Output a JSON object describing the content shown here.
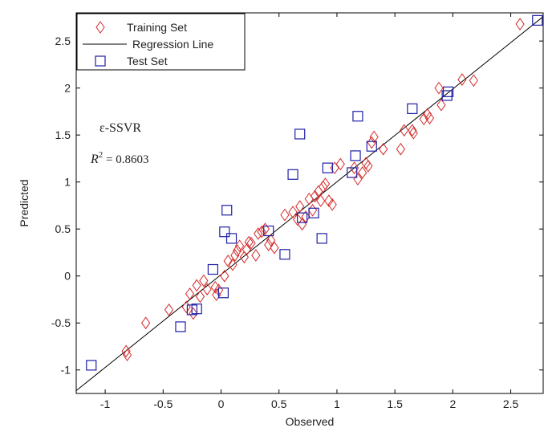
{
  "chart_data": {
    "type": "scatter",
    "xlabel": "Observed",
    "ylabel": "Predicted",
    "xlim": [
      -1.25,
      2.78
    ],
    "ylim": [
      -1.25,
      2.8
    ],
    "xticks": [
      "-1",
      "-0.5",
      "0",
      "0.5",
      "1",
      "1.5",
      "2",
      "2.5"
    ],
    "xtick_values": [
      -1,
      -0.5,
      0,
      0.5,
      1,
      1.5,
      2,
      2.5
    ],
    "yticks": [
      "-1",
      "-0.5",
      "0",
      "0.5",
      "1",
      "1.5",
      "2",
      "2.5"
    ],
    "ytick_values": [
      -1,
      -0.5,
      0,
      0.5,
      1,
      1.5,
      2,
      2.5
    ],
    "grid": false,
    "legend_position": "top-left",
    "annotation_method": "ε-SSVR",
    "annotation_r2_label": "R",
    "annotation_r2_exp": "2",
    "annotation_r2_value": " = 0.8603",
    "regression_line": {
      "name": "Regression Line",
      "color": "#000000",
      "points": [
        [
          -1.25,
          -1.22
        ],
        [
          2.78,
          2.76
        ]
      ]
    },
    "series": [
      {
        "name": "Training Set",
        "marker": "diamond",
        "color": "#d42a2a",
        "points": [
          [
            -0.82,
            -0.8
          ],
          [
            -0.81,
            -0.84
          ],
          [
            -0.65,
            -0.5
          ],
          [
            -0.45,
            -0.36
          ],
          [
            -0.3,
            -0.33
          ],
          [
            -0.27,
            -0.19
          ],
          [
            -0.24,
            -0.4
          ],
          [
            -0.21,
            -0.1
          ],
          [
            -0.18,
            -0.22
          ],
          [
            -0.15,
            -0.05
          ],
          [
            -0.12,
            -0.14
          ],
          [
            -0.05,
            -0.12
          ],
          [
            -0.04,
            -0.2
          ],
          [
            -0.02,
            -0.15
          ],
          [
            0.03,
            0.0
          ],
          [
            0.06,
            0.16
          ],
          [
            0.1,
            0.12
          ],
          [
            0.12,
            0.22
          ],
          [
            0.14,
            0.27
          ],
          [
            0.16,
            0.32
          ],
          [
            0.2,
            0.2
          ],
          [
            0.22,
            0.28
          ],
          [
            0.24,
            0.36
          ],
          [
            0.26,
            0.35
          ],
          [
            0.3,
            0.22
          ],
          [
            0.32,
            0.45
          ],
          [
            0.35,
            0.47
          ],
          [
            0.38,
            0.5
          ],
          [
            0.41,
            0.33
          ],
          [
            0.43,
            0.38
          ],
          [
            0.46,
            0.3
          ],
          [
            0.55,
            0.65
          ],
          [
            0.62,
            0.68
          ],
          [
            0.66,
            0.6
          ],
          [
            0.68,
            0.74
          ],
          [
            0.7,
            0.55
          ],
          [
            0.73,
            0.63
          ],
          [
            0.76,
            0.82
          ],
          [
            0.79,
            0.7
          ],
          [
            0.81,
            0.85
          ],
          [
            0.84,
            0.9
          ],
          [
            0.86,
            0.8
          ],
          [
            0.88,
            0.95
          ],
          [
            0.9,
            0.98
          ],
          [
            0.93,
            0.8
          ],
          [
            0.96,
            0.76
          ],
          [
            0.98,
            1.15
          ],
          [
            1.03,
            1.19
          ],
          [
            1.15,
            1.15
          ],
          [
            1.18,
            1.03
          ],
          [
            1.22,
            1.1
          ],
          [
            1.25,
            1.2
          ],
          [
            1.27,
            1.17
          ],
          [
            1.3,
            1.42
          ],
          [
            1.32,
            1.48
          ],
          [
            1.4,
            1.35
          ],
          [
            1.55,
            1.35
          ],
          [
            1.58,
            1.55
          ],
          [
            1.65,
            1.55
          ],
          [
            1.66,
            1.52
          ],
          [
            1.75,
            1.67
          ],
          [
            1.78,
            1.72
          ],
          [
            1.8,
            1.68
          ],
          [
            1.88,
            2.0
          ],
          [
            1.9,
            1.82
          ],
          [
            2.08,
            2.09
          ],
          [
            2.18,
            2.08
          ],
          [
            2.58,
            2.68
          ]
        ]
      },
      {
        "name": "Test Set",
        "marker": "square",
        "color": "#1f1fa8",
        "points": [
          [
            -1.12,
            -0.95
          ],
          [
            -0.35,
            -0.54
          ],
          [
            -0.25,
            -0.36
          ],
          [
            -0.21,
            -0.35
          ],
          [
            -0.07,
            0.07
          ],
          [
            0.02,
            -0.18
          ],
          [
            0.03,
            0.47
          ],
          [
            0.05,
            0.7
          ],
          [
            0.09,
            0.4
          ],
          [
            0.41,
            0.48
          ],
          [
            0.55,
            0.23
          ],
          [
            0.62,
            1.08
          ],
          [
            0.68,
            1.51
          ],
          [
            0.7,
            0.62
          ],
          [
            0.8,
            0.67
          ],
          [
            0.87,
            0.4
          ],
          [
            0.92,
            1.15
          ],
          [
            1.13,
            1.1
          ],
          [
            1.16,
            1.28
          ],
          [
            1.18,
            1.7
          ],
          [
            1.3,
            1.38
          ],
          [
            1.65,
            1.78
          ],
          [
            1.95,
            1.92
          ],
          [
            1.96,
            1.96
          ],
          [
            2.73,
            2.72
          ]
        ]
      }
    ]
  }
}
